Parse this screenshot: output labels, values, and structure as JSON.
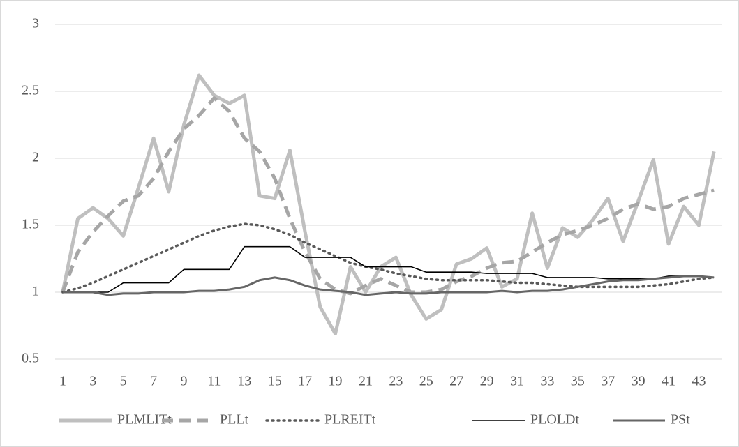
{
  "chart_data": {
    "type": "line",
    "categories": [
      1,
      null,
      3,
      null,
      5,
      null,
      7,
      null,
      9,
      null,
      11,
      null,
      13,
      null,
      15,
      null,
      17,
      null,
      19,
      null,
      21,
      null,
      23,
      null,
      25,
      null,
      27,
      null,
      29,
      null,
      31,
      null,
      33,
      null,
      35,
      null,
      37,
      null,
      39,
      null,
      41,
      null,
      43,
      null
    ],
    "ylim": [
      0.5,
      3
    ],
    "yticks": [
      0.5,
      1,
      1.5,
      2,
      2.5,
      3
    ],
    "grid": true,
    "legend": "bottom",
    "series": [
      {
        "name": "PLMLITt",
        "color": "#bfbfbf",
        "style": "solid",
        "values": [
          1.0,
          1.55,
          1.63,
          1.55,
          1.42,
          1.78,
          2.15,
          1.75,
          2.25,
          2.62,
          2.47,
          2.41,
          2.47,
          1.72,
          1.7,
          2.06,
          1.45,
          0.89,
          0.69,
          1.19,
          1.0,
          1.19,
          1.26,
          0.98,
          0.8,
          0.87,
          1.21,
          1.25,
          1.33,
          1.04,
          1.1,
          1.59,
          1.18,
          1.48,
          1.41,
          1.54,
          1.7,
          1.38,
          1.68,
          1.99,
          1.36,
          1.64,
          1.5,
          2.05
        ]
      },
      {
        "name": "PLLt",
        "color": "#a6a6a6",
        "style": "dashed",
        "values": [
          1.0,
          1.3,
          1.45,
          1.57,
          1.68,
          1.72,
          1.85,
          2.05,
          2.22,
          2.32,
          2.45,
          2.35,
          2.15,
          2.05,
          1.85,
          1.55,
          1.3,
          1.1,
          1.02,
          0.99,
          1.05,
          1.1,
          1.05,
          1.0,
          1.0,
          1.02,
          1.08,
          1.12,
          1.18,
          1.22,
          1.23,
          1.3,
          1.37,
          1.43,
          1.46,
          1.5,
          1.55,
          1.62,
          1.66,
          1.62,
          1.64,
          1.7,
          1.73,
          1.76
        ]
      },
      {
        "name": "PLREITt",
        "color": "#595959",
        "style": "dotted",
        "values": [
          1.0,
          1.03,
          1.07,
          1.12,
          1.17,
          1.22,
          1.27,
          1.32,
          1.37,
          1.42,
          1.46,
          1.49,
          1.51,
          1.5,
          1.47,
          1.43,
          1.37,
          1.32,
          1.27,
          1.22,
          1.19,
          1.17,
          1.14,
          1.12,
          1.1,
          1.09,
          1.09,
          1.09,
          1.09,
          1.08,
          1.07,
          1.07,
          1.06,
          1.05,
          1.04,
          1.04,
          1.04,
          1.04,
          1.04,
          1.05,
          1.06,
          1.08,
          1.1,
          1.11
        ]
      },
      {
        "name": "PLOLDt",
        "color": "#000000",
        "style": "solid",
        "values": [
          1.0,
          1.0,
          1.0,
          1.0,
          1.07,
          1.07,
          1.07,
          1.07,
          1.17,
          1.17,
          1.17,
          1.17,
          1.34,
          1.34,
          1.34,
          1.34,
          1.26,
          1.26,
          1.26,
          1.26,
          1.19,
          1.19,
          1.19,
          1.19,
          1.15,
          1.15,
          1.15,
          1.15,
          1.14,
          1.14,
          1.14,
          1.14,
          1.11,
          1.11,
          1.11,
          1.11,
          1.1,
          1.1,
          1.1,
          1.1,
          1.12,
          1.12,
          1.12,
          1.11
        ]
      },
      {
        "name": "PSt",
        "color": "#666666",
        "style": "solid",
        "values": [
          1.0,
          1.0,
          1.0,
          0.98,
          0.99,
          0.99,
          1.0,
          1.0,
          1.0,
          1.01,
          1.01,
          1.02,
          1.04,
          1.09,
          1.11,
          1.09,
          1.05,
          1.02,
          1.01,
          1.0,
          0.98,
          0.99,
          1.0,
          0.99,
          0.99,
          1.0,
          1.0,
          1.0,
          1.0,
          1.01,
          1.0,
          1.01,
          1.01,
          1.02,
          1.04,
          1.06,
          1.08,
          1.09,
          1.09,
          1.1,
          1.11,
          1.12,
          1.12,
          1.11
        ]
      }
    ]
  }
}
